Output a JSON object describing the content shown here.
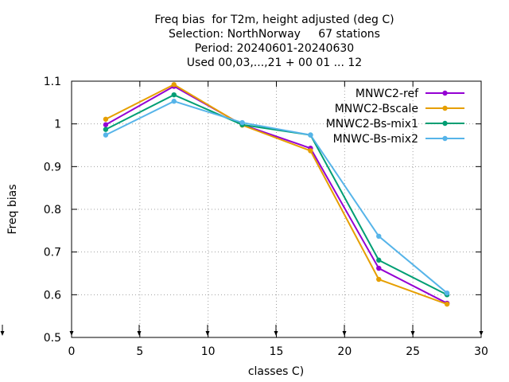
{
  "chart_data": {
    "type": "line",
    "title_lines": [
      "Freq bias  for T2m, height adjusted (deg C)",
      "Selection: NorthNorway     67 stations",
      "Period: 20240601-20240630",
      "Used 00,03,...,21 + 00 01 ... 12"
    ],
    "xlabel": "classes C)",
    "ylabel": "Freq bias",
    "xlim": [
      0,
      30
    ],
    "ylim": [
      0.5,
      1.1
    ],
    "xticks": [
      0,
      5,
      10,
      15,
      20,
      25,
      30
    ],
    "yticks": [
      0.5,
      0.6,
      0.7,
      0.8,
      0.9,
      1.0,
      1.1
    ],
    "ytick_labels": [
      "0.5",
      "0.6",
      "0.7",
      "0.8",
      "0.9",
      "1",
      "1.1"
    ],
    "grid": true,
    "legend_position": "top-right",
    "x": [
      2.5,
      7.5,
      12.5,
      17.5,
      22.5,
      27.5
    ],
    "series": [
      {
        "name": "MNWC2-ref",
        "color": "#9400d3",
        "values": [
          0.998,
          1.088,
          0.998,
          0.943,
          0.662,
          0.58
        ]
      },
      {
        "name": "MNWC2-Bscale",
        "color": "#e69f00",
        "values": [
          1.011,
          1.092,
          0.997,
          0.937,
          0.636,
          0.578
        ]
      },
      {
        "name": "MNWC2-Bs-mix1",
        "color": "#009e73",
        "values": [
          0.987,
          1.068,
          0.998,
          0.974,
          0.681,
          0.6
        ]
      },
      {
        "name": "MNWC-Bs-mix2",
        "color": "#56b4e9",
        "values": [
          0.974,
          1.053,
          1.003,
          0.974,
          0.737,
          0.604
        ]
      }
    ]
  }
}
